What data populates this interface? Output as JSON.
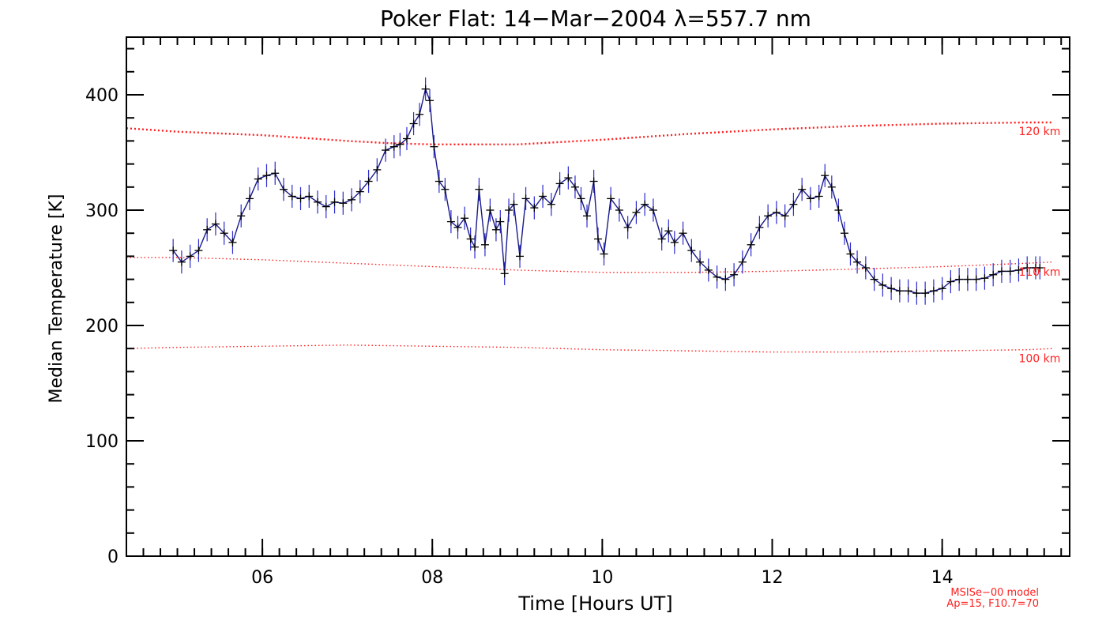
{
  "chart_data": {
    "type": "line",
    "title": "Poker Flat: 14−Mar−2004 λ=557.7 nm",
    "xlabel": "Time [Hours UT]",
    "ylabel": "Median Temperature [K]",
    "xlim": [
      4.4,
      15.5
    ],
    "ylim": [
      0,
      450
    ],
    "x_ticks": [
      6,
      8,
      10,
      12,
      14
    ],
    "x_tick_labels": [
      "06",
      "08",
      "10",
      "12",
      "14"
    ],
    "x_minor_step": 0.2,
    "y_ticks": [
      0,
      100,
      200,
      300,
      400
    ],
    "y_tick_labels": [
      "0",
      "100",
      "200",
      "300",
      "400"
    ],
    "y_minor_step": 20,
    "grid": false,
    "colors": {
      "measurement": "#1a1a8c",
      "errorbar": "#2b2bd0",
      "marker": "#000000",
      "model": "#ff2020"
    },
    "series": [
      {
        "name": "Median temperature (observed)",
        "style": "line+plus markers with vertical error bars",
        "error_bar_halfwidth_K": 10,
        "x": [
          4.95,
          5.05,
          5.15,
          5.25,
          5.35,
          5.45,
          5.55,
          5.65,
          5.75,
          5.85,
          5.95,
          6.05,
          6.15,
          6.25,
          6.35,
          6.45,
          6.55,
          6.65,
          6.75,
          6.85,
          6.95,
          7.05,
          7.15,
          7.25,
          7.35,
          7.45,
          7.55,
          7.62,
          7.7,
          7.78,
          7.85,
          7.92,
          7.97,
          8.02,
          8.08,
          8.15,
          8.22,
          8.3,
          8.38,
          8.45,
          8.5,
          8.55,
          8.62,
          8.68,
          8.75,
          8.8,
          8.85,
          8.9,
          8.96,
          9.03,
          9.1,
          9.2,
          9.3,
          9.4,
          9.5,
          9.6,
          9.68,
          9.75,
          9.82,
          9.9,
          9.95,
          10.02,
          10.1,
          10.2,
          10.3,
          10.4,
          10.5,
          10.6,
          10.7,
          10.78,
          10.85,
          10.95,
          11.05,
          11.15,
          11.25,
          11.35,
          11.45,
          11.55,
          11.65,
          11.75,
          11.85,
          11.95,
          12.05,
          12.15,
          12.25,
          12.35,
          12.45,
          12.55,
          12.62,
          12.7,
          12.78,
          12.85,
          12.92,
          13.0,
          13.1,
          13.2,
          13.3,
          13.4,
          13.5,
          13.6,
          13.7,
          13.8,
          13.9,
          14.0,
          14.1,
          14.2,
          14.3,
          14.4,
          14.5,
          14.6,
          14.7,
          14.8,
          14.9,
          15.0,
          15.1,
          15.15
        ],
        "y": [
          265,
          255,
          260,
          265,
          283,
          288,
          280,
          272,
          295,
          310,
          327,
          330,
          332,
          318,
          312,
          310,
          312,
          307,
          303,
          307,
          306,
          309,
          316,
          325,
          335,
          352,
          355,
          357,
          362,
          375,
          383,
          405,
          395,
          355,
          325,
          318,
          290,
          285,
          293,
          275,
          268,
          318,
          270,
          300,
          283,
          290,
          245,
          300,
          305,
          260,
          310,
          302,
          312,
          305,
          323,
          328,
          320,
          310,
          295,
          325,
          275,
          262,
          310,
          300,
          285,
          298,
          305,
          300,
          275,
          282,
          272,
          280,
          265,
          255,
          248,
          242,
          240,
          244,
          255,
          270,
          285,
          295,
          298,
          295,
          305,
          318,
          310,
          312,
          330,
          320,
          300,
          280,
          262,
          255,
          250,
          240,
          235,
          232,
          230,
          230,
          228,
          228,
          230,
          232,
          238,
          240,
          240,
          240,
          241,
          244,
          247,
          247,
          248,
          250,
          250,
          250
        ]
      },
      {
        "name": "MSISe-00 model 120 km",
        "style": "dotted",
        "x": [
          4.4,
          5.0,
          6.0,
          7.0,
          7.5,
          8.0,
          9.0,
          10.0,
          11.0,
          12.0,
          13.0,
          14.0,
          15.0,
          15.3
        ],
        "y": [
          371,
          368,
          365,
          360,
          358,
          357,
          357,
          361,
          366,
          370,
          373,
          375,
          376,
          376
        ]
      },
      {
        "name": "MSISe-00 model 110 km",
        "style": "dotted",
        "x": [
          4.4,
          5.0,
          6.0,
          7.0,
          8.0,
          9.0,
          10.0,
          11.0,
          12.0,
          13.0,
          14.0,
          15.0,
          15.3
        ],
        "y": [
          259,
          259,
          257,
          254,
          251,
          248,
          246,
          246,
          247,
          249,
          251,
          254,
          255
        ]
      },
      {
        "name": "MSISe-00 model 100 km",
        "style": "dotted",
        "x": [
          4.4,
          5.0,
          6.0,
          7.0,
          8.0,
          9.0,
          10.0,
          11.0,
          12.0,
          13.0,
          14.0,
          15.0,
          15.3
        ],
        "y": [
          180,
          181,
          182,
          183,
          182,
          181,
          179,
          178,
          177,
          177,
          178,
          179,
          180
        ]
      }
    ],
    "annotations": [
      {
        "text": "120 km",
        "x": 14.9,
        "y": 365
      },
      {
        "text": "110 km",
        "x": 14.9,
        "y": 243
      },
      {
        "text": "100 km",
        "x": 14.9,
        "y": 168
      }
    ],
    "footnote_lines": [
      "MSISe−00 model",
      "Ap=15, F10.7=70"
    ]
  }
}
